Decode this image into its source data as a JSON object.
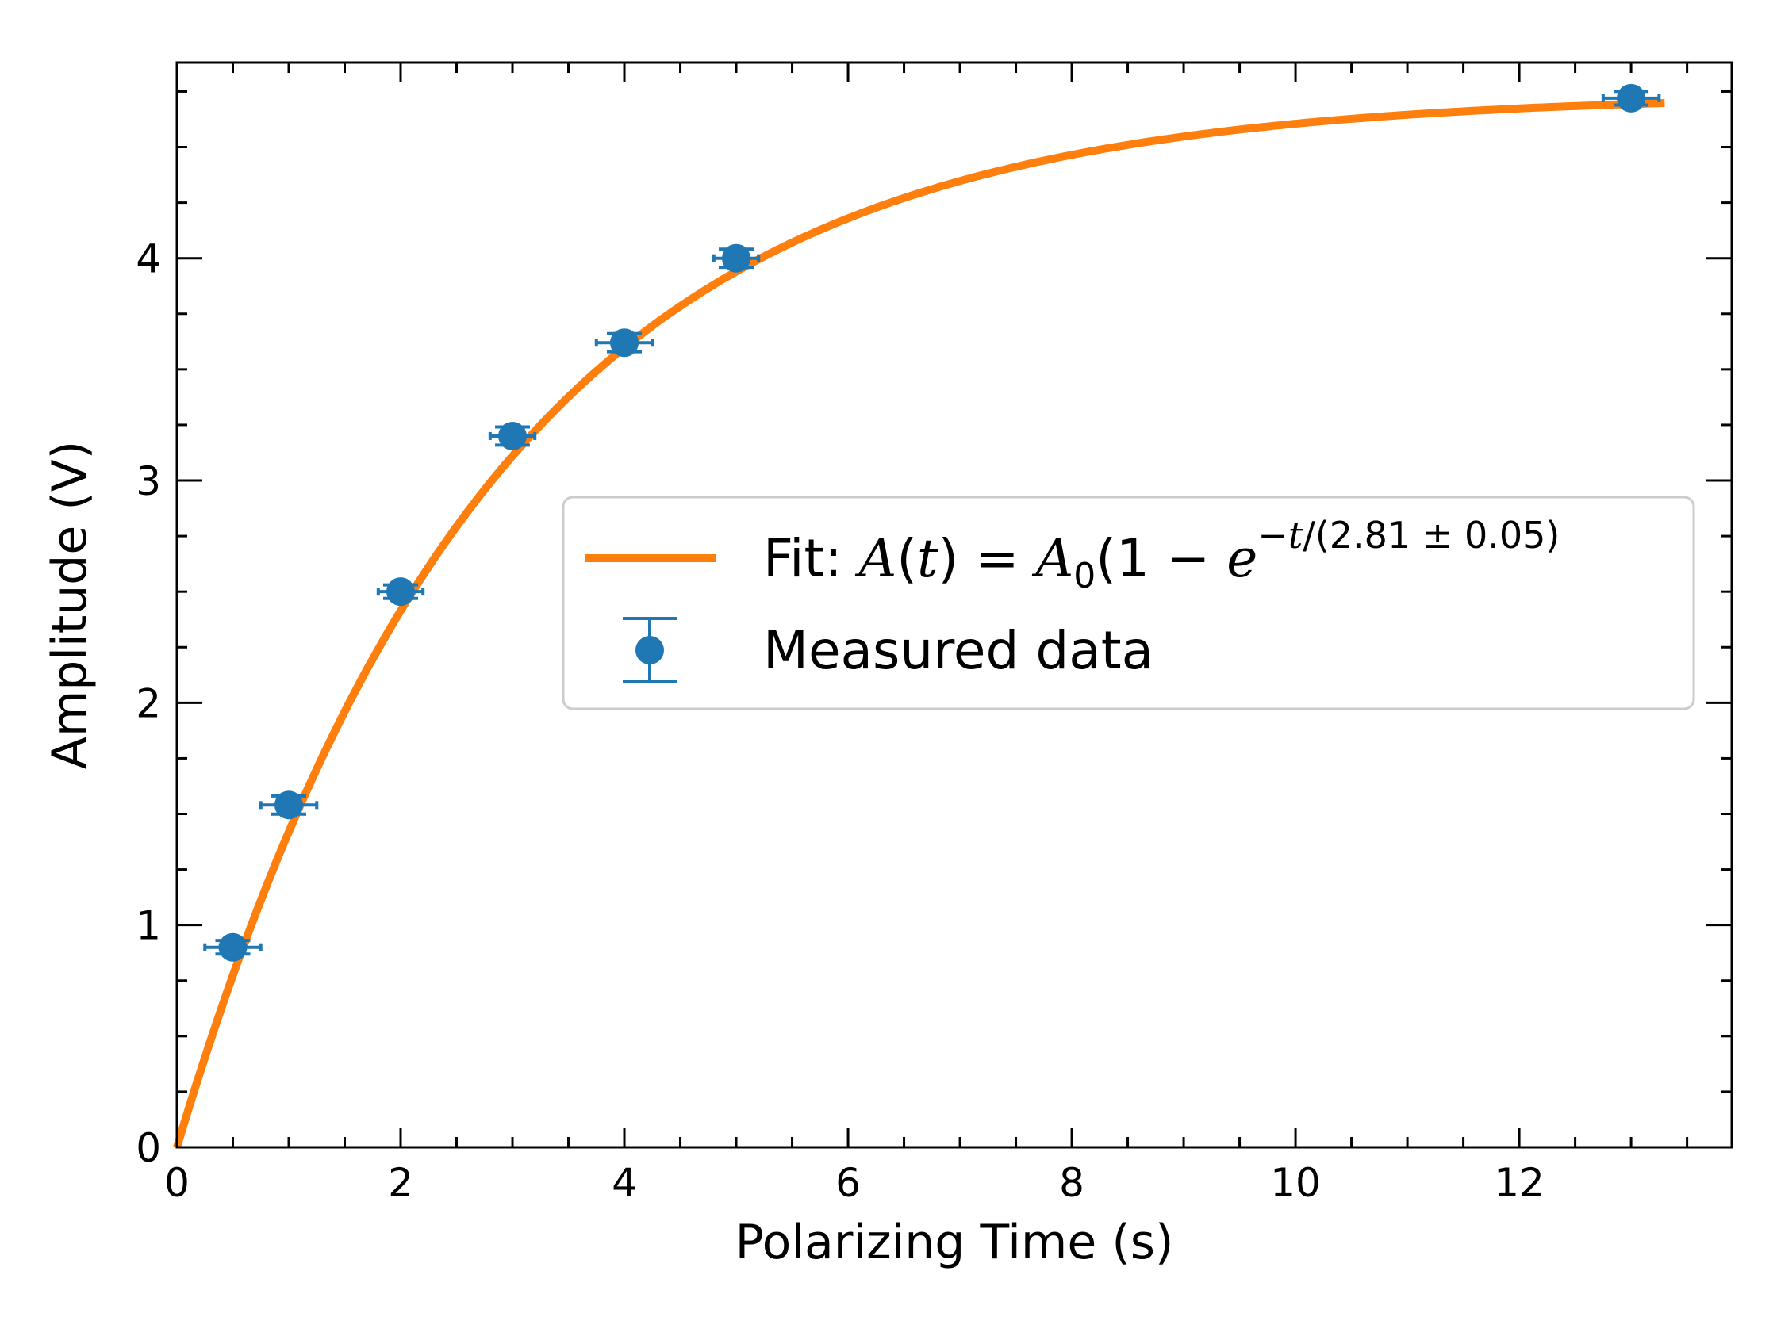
{
  "colors": {
    "fit_line": "#ff7f0e",
    "data_points": "#1f77b4",
    "axes": "#000000",
    "legend_border": "#cccccc",
    "background": "#ffffff"
  },
  "chart_data": {
    "type": "scatter",
    "title": "",
    "xlabel": "Polarizing Time (s)",
    "ylabel": "Amplitude (V)",
    "xlim": [
      0,
      13.9
    ],
    "ylim": [
      0,
      4.88
    ],
    "xticks": [
      0,
      2,
      4,
      6,
      8,
      10,
      12
    ],
    "yticks": [
      0,
      1,
      2,
      3,
      4
    ],
    "x_minor_step": 0.5,
    "y_minor_step": 0.25,
    "tick_direction": "in",
    "ticks_on_all_sides": true,
    "grid": false,
    "legend_position": "center-right",
    "series": [
      {
        "name": "Measured data",
        "kind": "errorbar",
        "x": [
          0.5,
          1,
          2,
          3,
          4,
          5,
          13
        ],
        "y": [
          0.9,
          1.54,
          2.5,
          3.2,
          3.62,
          4.0,
          4.72
        ],
        "xerr": [
          0.25,
          0.25,
          0.2,
          0.2,
          0.25,
          0.2,
          0.25
        ],
        "yerr": [
          0.02,
          0.03,
          0.02,
          0.03,
          0.03,
          0.03,
          0.02
        ]
      },
      {
        "name": "Fit: A(t) = A0(1 − e^(−t/(2.81 ± 0.05)))",
        "kind": "line",
        "model": "A0*(1-exp(-t/tau))",
        "A0": 4.74,
        "tau": 2.81,
        "x_range": [
          0,
          13.3
        ]
      }
    ],
    "legend": {
      "fit_prefix": "Fit: ",
      "fit_A": "A",
      "fit_t": "t",
      "fit_A0": "A",
      "fit_A0_sub": "0",
      "fit_e": "e",
      "fit_exp_minus": "−",
      "fit_exp_t": "t",
      "fit_exp_rest": "/(2.81 ± 0.05)",
      "data_label": "Measured data"
    }
  }
}
